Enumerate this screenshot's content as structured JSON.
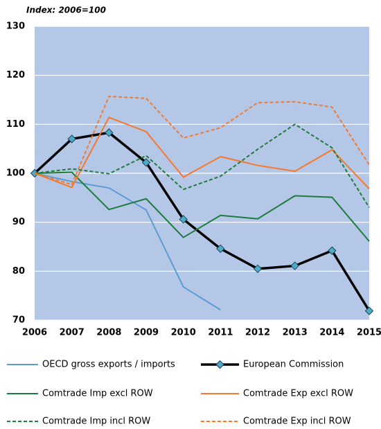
{
  "chart_data": {
    "type": "line",
    "subtitle": "Index: 2006=100",
    "categories": [
      "2006",
      "2007",
      "2008",
      "2009",
      "2010",
      "2011",
      "2012",
      "2013",
      "2014",
      "2015"
    ],
    "ylim": [
      70,
      130
    ],
    "yticks": [
      70,
      80,
      90,
      100,
      110,
      120,
      130
    ],
    "grid": true,
    "series": [
      {
        "name": "OECD gross exports / imports",
        "color": "#5b9bd5",
        "dashed": false,
        "values": [
          100,
          98.3,
          97,
          92.5,
          76.8,
          72.1,
          null,
          null,
          null,
          null
        ]
      },
      {
        "name": "European Commission",
        "color": "#000000",
        "dashed": false,
        "marker": "diamond",
        "values": [
          100,
          107,
          108.3,
          102.2,
          90.6,
          84.6,
          80.5,
          81.1,
          84.2,
          71.9
        ]
      },
      {
        "name": "Comtrade Imp excl ROW",
        "color": "#1e7b3e",
        "dashed": false,
        "values": [
          100,
          100.2,
          92.6,
          94.8,
          86.9,
          91.4,
          90.7,
          95.4,
          95.1,
          86.1
        ]
      },
      {
        "name": "Comtrade Exp excl ROW",
        "color": "#f4792b",
        "dashed": false,
        "values": [
          100,
          97.1,
          111.4,
          108.5,
          99.2,
          103.4,
          101.6,
          100.4,
          104.8,
          96.8
        ]
      },
      {
        "name": "Comtrade Imp incl ROW",
        "color": "#1e7b3e",
        "dashed": true,
        "values": [
          100,
          100.9,
          99.9,
          103.6,
          96.7,
          99.4,
          104.9,
          110.0,
          105.2,
          93.0
        ]
      },
      {
        "name": "Comtrade Exp incl ROW",
        "color": "#f4792b",
        "dashed": true,
        "values": [
          100,
          97.7,
          115.7,
          115.3,
          107.2,
          109.3,
          114.4,
          114.6,
          113.5,
          101.7
        ]
      }
    ]
  }
}
